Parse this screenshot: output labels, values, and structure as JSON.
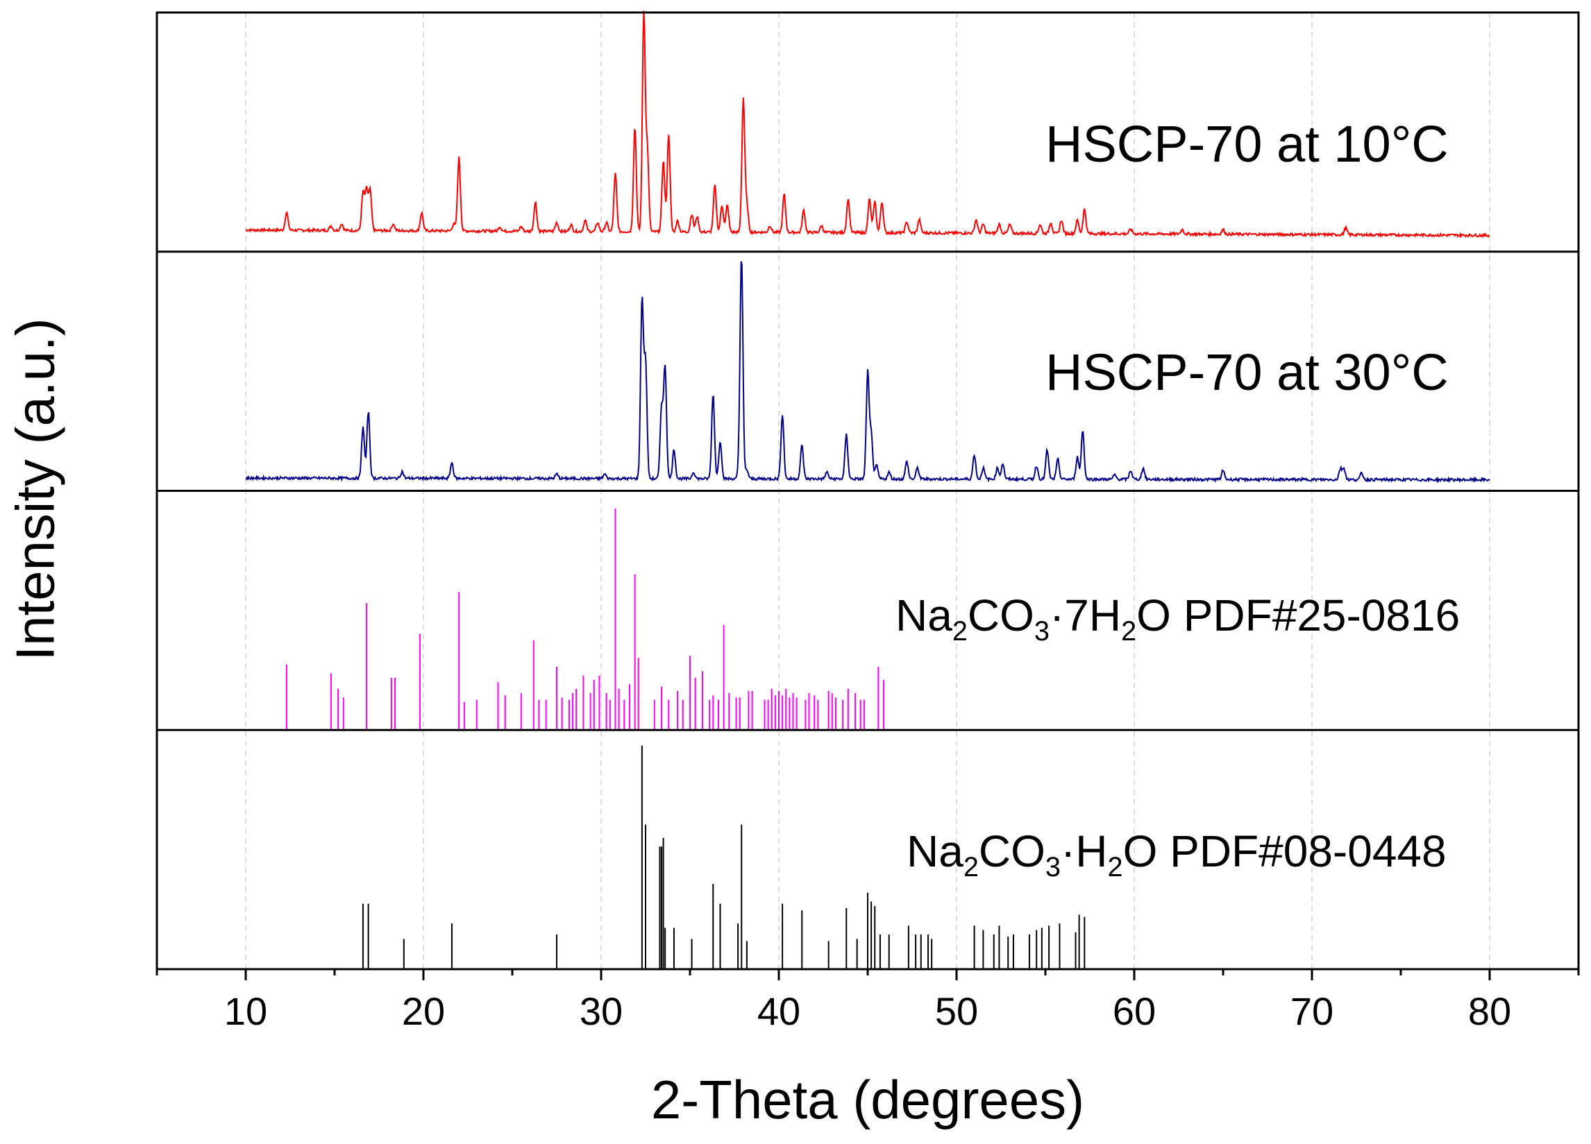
{
  "chart_data": {
    "type": "line",
    "xlabel": "2-Theta (degrees)",
    "ylabel": "Intensity (a.u.)",
    "xlim": [
      5,
      85
    ],
    "xticks": [
      "10",
      "20",
      "30",
      "40",
      "50",
      "60",
      "70",
      "80"
    ],
    "x_minor_ticks": true,
    "y_ticks_visible": false,
    "grid": "vertical dashed at major x ticks",
    "panels": [
      {
        "name": "HSCP-70 at 10°C",
        "color": "#ff0000",
        "style": "pattern",
        "x_range": [
          10,
          80
        ],
        "baseline": 0.06,
        "peaks": [
          [
            12.3,
            0.08
          ],
          [
            14.8,
            0.02
          ],
          [
            15.4,
            0.03
          ],
          [
            16.6,
            0.17
          ],
          [
            16.8,
            0.18
          ],
          [
            17.0,
            0.18
          ],
          [
            18.3,
            0.03
          ],
          [
            19.9,
            0.08
          ],
          [
            21.7,
            0.03
          ],
          [
            22.0,
            0.33
          ],
          [
            24.3,
            0.02
          ],
          [
            25.5,
            0.02
          ],
          [
            26.3,
            0.13
          ],
          [
            27.5,
            0.04
          ],
          [
            28.3,
            0.03
          ],
          [
            29.1,
            0.05
          ],
          [
            29.8,
            0.04
          ],
          [
            30.3,
            0.04
          ],
          [
            30.8,
            0.26
          ],
          [
            31.9,
            0.47
          ],
          [
            32.4,
            0.98
          ],
          [
            32.6,
            0.36
          ],
          [
            33.5,
            0.32
          ],
          [
            33.8,
            0.44
          ],
          [
            34.3,
            0.05
          ],
          [
            35.1,
            0.08
          ],
          [
            35.4,
            0.07
          ],
          [
            36.4,
            0.21
          ],
          [
            36.8,
            0.12
          ],
          [
            37.1,
            0.12
          ],
          [
            38.0,
            0.6
          ],
          [
            38.2,
            0.12
          ],
          [
            39.5,
            0.03
          ],
          [
            40.3,
            0.17
          ],
          [
            41.4,
            0.1
          ],
          [
            42.4,
            0.03
          ],
          [
            43.9,
            0.15
          ],
          [
            45.1,
            0.15
          ],
          [
            45.4,
            0.14
          ],
          [
            45.8,
            0.14
          ],
          [
            47.2,
            0.05
          ],
          [
            47.9,
            0.06
          ],
          [
            51.1,
            0.06
          ],
          [
            51.5,
            0.04
          ],
          [
            52.4,
            0.04
          ],
          [
            53.0,
            0.04
          ],
          [
            54.7,
            0.04
          ],
          [
            55.3,
            0.05
          ],
          [
            55.9,
            0.06
          ],
          [
            56.8,
            0.06
          ],
          [
            57.2,
            0.11
          ],
          [
            59.8,
            0.02
          ],
          [
            62.7,
            0.02
          ],
          [
            65.0,
            0.02
          ],
          [
            71.9,
            0.03
          ]
        ]
      },
      {
        "name": "HSCP-70 at 30°C",
        "color": "#00008b",
        "style": "pattern",
        "x_range": [
          10,
          80
        ],
        "baseline": 0.02,
        "peaks": [
          [
            16.6,
            0.23
          ],
          [
            16.9,
            0.3
          ],
          [
            18.8,
            0.03
          ],
          [
            21.6,
            0.07
          ],
          [
            27.5,
            0.02
          ],
          [
            30.2,
            0.02
          ],
          [
            32.3,
            0.8
          ],
          [
            32.5,
            0.52
          ],
          [
            33.4,
            0.32
          ],
          [
            33.6,
            0.5
          ],
          [
            34.1,
            0.13
          ],
          [
            35.2,
            0.03
          ],
          [
            36.3,
            0.38
          ],
          [
            36.7,
            0.17
          ],
          [
            37.8,
            0.07
          ],
          [
            37.9,
            0.97
          ],
          [
            38.2,
            0.04
          ],
          [
            40.2,
            0.29
          ],
          [
            41.3,
            0.15
          ],
          [
            42.7,
            0.03
          ],
          [
            43.8,
            0.2
          ],
          [
            45.0,
            0.48
          ],
          [
            45.2,
            0.2
          ],
          [
            45.5,
            0.06
          ],
          [
            46.2,
            0.03
          ],
          [
            47.2,
            0.08
          ],
          [
            47.8,
            0.05
          ],
          [
            51.0,
            0.11
          ],
          [
            51.5,
            0.05
          ],
          [
            52.3,
            0.05
          ],
          [
            52.6,
            0.07
          ],
          [
            54.5,
            0.06
          ],
          [
            55.1,
            0.13
          ],
          [
            55.7,
            0.09
          ],
          [
            56.8,
            0.1
          ],
          [
            57.1,
            0.22
          ],
          [
            58.9,
            0.02
          ],
          [
            59.8,
            0.04
          ],
          [
            60.5,
            0.05
          ],
          [
            65.0,
            0.04
          ],
          [
            71.6,
            0.05
          ],
          [
            71.8,
            0.05
          ],
          [
            72.8,
            0.03
          ]
        ]
      },
      {
        "name_parts": [
          "Na",
          "2",
          "CO",
          "3",
          "·7H",
          "2",
          "O PDF#25-0816"
        ],
        "color": "#ff00ff",
        "style": "sticks",
        "sticks": [
          [
            12.3,
            0.26
          ],
          [
            14.8,
            0.22
          ],
          [
            15.2,
            0.15
          ],
          [
            15.5,
            0.11
          ],
          [
            16.8,
            0.54
          ],
          [
            18.2,
            0.2
          ],
          [
            18.4,
            0.2
          ],
          [
            19.8,
            0.4
          ],
          [
            22.0,
            0.59
          ],
          [
            22.3,
            0.09
          ],
          [
            23.0,
            0.1
          ],
          [
            24.2,
            0.18
          ],
          [
            24.6,
            0.12
          ],
          [
            25.5,
            0.13
          ],
          [
            26.2,
            0.37
          ],
          [
            26.5,
            0.1
          ],
          [
            26.9,
            0.1
          ],
          [
            27.5,
            0.25
          ],
          [
            27.8,
            0.11
          ],
          [
            28.2,
            0.1
          ],
          [
            28.4,
            0.13
          ],
          [
            28.6,
            0.15
          ],
          [
            29.0,
            0.21
          ],
          [
            29.4,
            0.13
          ],
          [
            29.6,
            0.19
          ],
          [
            29.9,
            0.21
          ],
          [
            30.3,
            0.13
          ],
          [
            30.5,
            0.1
          ],
          [
            30.8,
            0.97
          ],
          [
            31.0,
            0.15
          ],
          [
            31.3,
            0.1
          ],
          [
            31.6,
            0.17
          ],
          [
            31.9,
            0.67
          ],
          [
            32.1,
            0.29
          ],
          [
            33.0,
            0.1
          ],
          [
            33.4,
            0.16
          ],
          [
            33.8,
            0.1
          ],
          [
            34.3,
            0.14
          ],
          [
            34.6,
            0.1
          ],
          [
            35.0,
            0.3
          ],
          [
            35.3,
            0.2
          ],
          [
            35.7,
            0.23
          ],
          [
            36.1,
            0.1
          ],
          [
            36.3,
            0.12
          ],
          [
            36.6,
            0.1
          ],
          [
            36.9,
            0.44
          ],
          [
            37.2,
            0.13
          ],
          [
            37.6,
            0.11
          ],
          [
            37.8,
            0.11
          ],
          [
            38.3,
            0.14
          ],
          [
            38.5,
            0.14
          ],
          [
            39.2,
            0.1
          ],
          [
            39.4,
            0.1
          ],
          [
            39.6,
            0.15
          ],
          [
            39.8,
            0.12
          ],
          [
            40.0,
            0.14
          ],
          [
            40.2,
            0.12
          ],
          [
            40.4,
            0.15
          ],
          [
            40.6,
            0.11
          ],
          [
            40.8,
            0.13
          ],
          [
            41.0,
            0.11
          ],
          [
            41.5,
            0.1
          ],
          [
            41.7,
            0.13
          ],
          [
            42.0,
            0.12
          ],
          [
            42.2,
            0.1
          ],
          [
            42.8,
            0.14
          ],
          [
            43.0,
            0.13
          ],
          [
            43.2,
            0.11
          ],
          [
            43.6,
            0.1
          ],
          [
            43.9,
            0.15
          ],
          [
            44.3,
            0.13
          ],
          [
            44.6,
            0.1
          ],
          [
            44.8,
            0.1
          ],
          [
            45.6,
            0.25
          ],
          [
            45.9,
            0.19
          ]
        ]
      },
      {
        "name_parts": [
          "Na",
          "2",
          "CO",
          "3",
          "·H",
          "2",
          "O PDF#08-0448"
        ],
        "color": "#000000",
        "style": "sticks",
        "sticks": [
          [
            16.6,
            0.26
          ],
          [
            16.9,
            0.26
          ],
          [
            18.9,
            0.1
          ],
          [
            21.6,
            0.17
          ],
          [
            27.5,
            0.12
          ],
          [
            32.3,
            0.98
          ],
          [
            32.5,
            0.62
          ],
          [
            33.3,
            0.52
          ],
          [
            33.4,
            0.52
          ],
          [
            33.5,
            0.56
          ],
          [
            33.6,
            0.15
          ],
          [
            34.1,
            0.15
          ],
          [
            35.1,
            0.1
          ],
          [
            36.3,
            0.35
          ],
          [
            36.7,
            0.26
          ],
          [
            37.7,
            0.17
          ],
          [
            37.9,
            0.62
          ],
          [
            38.2,
            0.09
          ],
          [
            40.2,
            0.26
          ],
          [
            41.3,
            0.23
          ],
          [
            42.8,
            0.09
          ],
          [
            43.8,
            0.24
          ],
          [
            44.4,
            0.1
          ],
          [
            45.0,
            0.31
          ],
          [
            45.2,
            0.27
          ],
          [
            45.4,
            0.25
          ],
          [
            45.7,
            0.12
          ],
          [
            46.2,
            0.12
          ],
          [
            47.3,
            0.16
          ],
          [
            47.7,
            0.12
          ],
          [
            48.0,
            0.12
          ],
          [
            48.4,
            0.12
          ],
          [
            48.6,
            0.1
          ],
          [
            51.0,
            0.16
          ],
          [
            51.5,
            0.14
          ],
          [
            52.1,
            0.12
          ],
          [
            52.4,
            0.16
          ],
          [
            52.9,
            0.11
          ],
          [
            53.2,
            0.12
          ],
          [
            54.1,
            0.12
          ],
          [
            54.5,
            0.14
          ],
          [
            54.8,
            0.15
          ],
          [
            55.2,
            0.16
          ],
          [
            55.8,
            0.17
          ],
          [
            56.7,
            0.13
          ],
          [
            56.9,
            0.21
          ],
          [
            57.2,
            0.2
          ]
        ]
      }
    ],
    "labels": {
      "panel1": "HSCP-70 at 10°C",
      "panel2": "HSCP-70 at 30°C"
    }
  }
}
